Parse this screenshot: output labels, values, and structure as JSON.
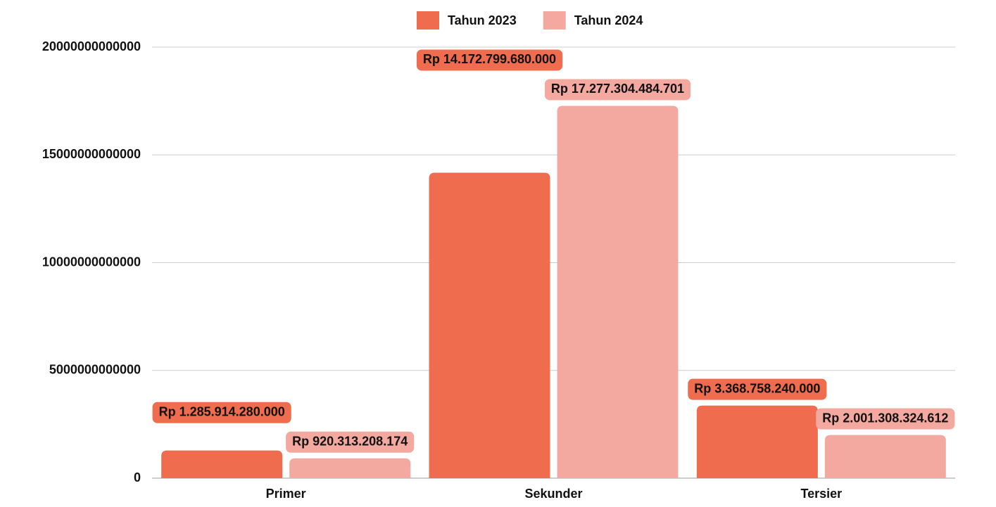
{
  "chart_data": {
    "type": "bar",
    "categories": [
      "Primer",
      "Sekunder",
      "Tersier"
    ],
    "series": [
      {
        "name": "Tahun 2023",
        "color": "#ef6c4f",
        "values": [
          1285914280000,
          14172799680000,
          3368758240000
        ],
        "value_labels": [
          "Rp 1.285.914.280.000",
          "Rp 14.172.799.680.000",
          "Rp 3.368.758.240.000"
        ]
      },
      {
        "name": "Tahun 2024",
        "color": "#f4a9a0",
        "values": [
          920313208174,
          17277304484701,
          2001308324612
        ],
        "value_labels": [
          "Rp 920.313.208.174",
          "Rp 17.277.304.484.701",
          "Rp 2.001.308.324.612"
        ]
      }
    ],
    "ylim": [
      0,
      20000000000000
    ],
    "yticks": [
      0,
      5000000000000,
      10000000000000,
      15000000000000,
      20000000000000
    ],
    "grid": true,
    "legend": "top"
  }
}
